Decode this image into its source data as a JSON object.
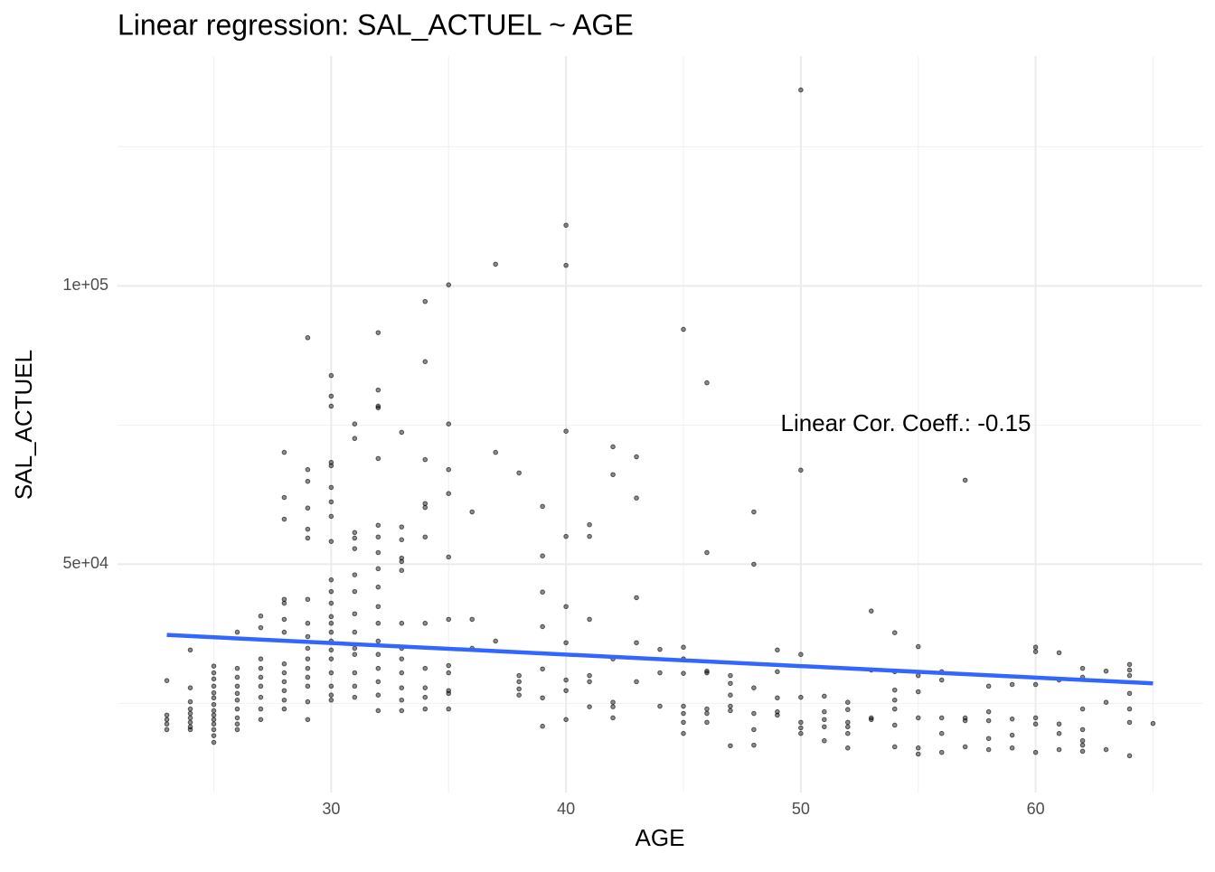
{
  "chart_data": {
    "type": "scatter",
    "title": "Linear regression: SAL_ACTUEL ~ AGE",
    "x_label": "AGE",
    "y_label": "SAL_ACTUEL",
    "annotation": "Linear Cor. Coeff.: -0.15",
    "xlim": [
      20.9,
      67.1
    ],
    "ylim": [
      9000,
      141300
    ],
    "xticks": [
      30,
      40,
      50,
      60
    ],
    "x_minor_ticks": [
      25,
      35,
      45,
      55,
      65
    ],
    "yticks": [
      {
        "value": 50000,
        "label": "5e+04"
      },
      {
        "value": 100000,
        "label": "1e+05"
      }
    ],
    "y_minor_ticks": [
      25000,
      75000,
      125000
    ],
    "grid": true,
    "point_color": "#000000",
    "x": [
      23,
      23,
      23,
      23,
      23,
      24,
      24,
      24,
      24,
      24,
      24,
      24,
      24,
      24,
      25,
      25,
      25,
      25,
      25,
      25,
      25,
      25,
      25,
      25,
      25,
      25,
      25,
      25,
      26,
      26,
      26,
      26,
      26,
      26,
      26,
      26,
      26,
      26,
      27,
      27,
      27,
      27,
      27,
      27,
      27,
      27,
      27,
      28,
      28,
      28,
      28,
      28,
      28,
      28,
      28,
      28,
      28,
      28,
      28,
      28,
      29,
      29,
      29,
      29,
      29,
      29,
      29,
      29,
      29,
      29,
      29,
      29,
      29,
      29,
      29,
      29,
      30,
      30,
      30,
      30,
      30,
      30,
      30,
      30,
      30,
      30,
      30,
      30,
      30,
      30,
      30,
      30,
      30,
      30,
      30,
      30,
      30,
      30,
      31,
      31,
      31,
      31,
      31,
      31,
      31,
      31,
      31,
      31,
      31,
      31,
      31,
      31,
      32,
      32,
      32,
      32,
      32,
      32,
      32,
      32,
      32,
      32,
      32,
      32,
      32,
      32,
      32,
      32,
      32,
      32,
      33,
      33,
      33,
      33,
      33,
      33,
      33,
      33,
      33,
      33,
      33,
      33,
      33,
      34,
      34,
      34,
      34,
      34,
      34,
      34,
      34,
      34,
      34,
      34,
      35,
      35,
      35,
      35,
      35,
      35,
      35,
      35,
      35,
      35,
      35,
      36,
      36,
      36,
      37,
      37,
      37,
      38,
      38,
      38,
      38,
      38,
      39,
      39,
      39,
      39,
      39,
      39,
      39,
      40,
      40,
      40,
      40,
      40,
      40,
      40,
      40,
      40,
      41,
      41,
      41,
      41,
      41,
      41,
      42,
      42,
      42,
      42,
      42,
      42,
      43,
      43,
      43,
      43,
      43,
      44,
      44,
      44,
      45,
      45,
      45,
      45,
      45,
      45,
      45,
      45,
      46,
      46,
      46,
      46,
      46,
      46,
      46,
      47,
      47,
      47,
      47,
      47,
      47,
      48,
      48,
      48,
      48,
      48,
      48,
      49,
      49,
      49,
      49,
      49,
      50,
      50,
      50,
      50,
      50,
      50,
      50,
      51,
      51,
      51,
      51,
      51,
      52,
      52,
      52,
      52,
      52,
      52,
      53,
      53,
      53,
      53,
      54,
      54,
      54,
      54,
      54,
      54,
      54,
      55,
      55,
      55,
      55,
      55,
      55,
      56,
      56,
      56,
      56,
      56,
      57,
      57,
      57,
      57,
      58,
      58,
      58,
      58,
      58,
      59,
      59,
      59,
      59,
      60,
      60,
      60,
      60,
      60,
      60,
      61,
      61,
      61,
      61,
      61,
      62,
      62,
      62,
      62,
      62,
      62,
      62,
      63,
      63,
      63,
      64,
      64,
      64,
      64,
      64,
      64,
      64,
      65
    ],
    "values": [
      29100,
      22900,
      22100,
      21300,
      20300,
      34600,
      27800,
      25300,
      24000,
      23200,
      22400,
      21600,
      20800,
      20300,
      31700,
      30500,
      29400,
      28100,
      26900,
      26000,
      24800,
      23700,
      22900,
      22100,
      21300,
      20300,
      19200,
      18000,
      37800,
      31300,
      29700,
      28100,
      26800,
      25600,
      24000,
      22400,
      21300,
      20300,
      40700,
      38600,
      33000,
      31300,
      29700,
      28100,
      26100,
      24000,
      22100,
      70100,
      62000,
      58100,
      43700,
      43000,
      40100,
      37800,
      32100,
      30500,
      28900,
      27300,
      25600,
      24000,
      90700,
      67000,
      64900,
      60100,
      56300,
      54700,
      43700,
      39400,
      37000,
      34900,
      33000,
      31300,
      29700,
      28100,
      25300,
      22100,
      83900,
      80200,
      78400,
      68300,
      67700,
      63800,
      61200,
      58600,
      54100,
      47200,
      45100,
      43000,
      40600,
      39400,
      37800,
      36200,
      34600,
      33000,
      30500,
      28100,
      26500,
      25600,
      75200,
      72600,
      55700,
      54700,
      52800,
      48100,
      45100,
      41100,
      37800,
      34900,
      33800,
      30500,
      28100,
      26100,
      91600,
      81300,
      78400,
      78100,
      69000,
      57000,
      54900,
      52100,
      49200,
      45900,
      42400,
      39400,
      36200,
      33800,
      31300,
      28900,
      26500,
      23700,
      73700,
      56700,
      54400,
      51100,
      50500,
      48900,
      39400,
      34900,
      33000,
      30500,
      27800,
      25600,
      23700,
      97200,
      86400,
      68800,
      60900,
      60200,
      54900,
      39400,
      31300,
      27800,
      26100,
      24000,
      100200,
      75200,
      67000,
      62700,
      51300,
      40100,
      31800,
      30500,
      27300,
      26800,
      24000,
      59400,
      40100,
      34900,
      103900,
      70100,
      36200,
      66400,
      30000,
      28900,
      27600,
      26500,
      60400,
      51500,
      45000,
      38800,
      31200,
      26000,
      20900,
      110900,
      103700,
      73900,
      55000,
      42400,
      35900,
      29200,
      27300,
      22100,
      57100,
      55000,
      40100,
      30000,
      28900,
      24400,
      71100,
      66100,
      33000,
      25200,
      24400,
      22400,
      69300,
      61900,
      44000,
      35900,
      28900,
      34700,
      30500,
      24500,
      92200,
      35100,
      33000,
      30400,
      24500,
      23200,
      21600,
      19600,
      82600,
      52100,
      30800,
      30500,
      24000,
      23200,
      21600,
      30000,
      28600,
      26500,
      24500,
      23700,
      17400,
      59400,
      50000,
      27800,
      23200,
      20300,
      17500,
      34600,
      30700,
      26000,
      23500,
      22900,
      135200,
      66900,
      33800,
      26100,
      21600,
      20600,
      19600,
      26300,
      23500,
      22100,
      20800,
      18300,
      25200,
      23900,
      21600,
      20800,
      19600,
      17000,
      41600,
      31000,
      22400,
      22100,
      37700,
      30700,
      27400,
      25600,
      24000,
      21100,
      17200,
      35200,
      30000,
      27100,
      22400,
      17000,
      15900,
      30700,
      29200,
      22400,
      19600,
      16200,
      65100,
      22400,
      21900,
      17200,
      28100,
      23500,
      21900,
      18700,
      16700,
      28400,
      22200,
      19300,
      17000,
      35100,
      34300,
      28400,
      22400,
      21300,
      16200,
      34100,
      29200,
      21300,
      19600,
      16700,
      31300,
      29700,
      24000,
      20300,
      18300,
      17500,
      16400,
      30800,
      25200,
      16700,
      32000,
      31000,
      30000,
      26800,
      24000,
      21600,
      15600,
      21400
    ],
    "trend": {
      "x": [
        23,
        65
      ],
      "values": [
        37300,
        28600
      ],
      "color": "#3366FF"
    }
  }
}
